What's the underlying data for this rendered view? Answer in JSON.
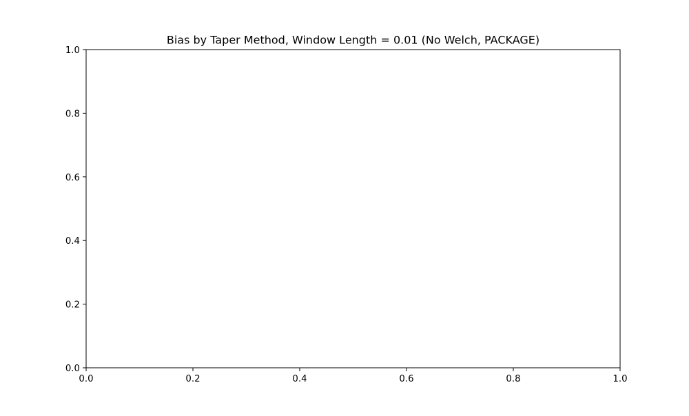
{
  "chart_data": {
    "type": "line",
    "title": "Bias by Taper Method, Window Length = 0.01 (No Welch, PACKAGE)",
    "xlabel": "",
    "ylabel": "",
    "xlim": [
      0.0,
      1.0
    ],
    "ylim": [
      0.0,
      1.0
    ],
    "x_ticks": [
      "0.0",
      "0.2",
      "0.4",
      "0.6",
      "0.8",
      "1.0"
    ],
    "y_ticks": [
      "0.0",
      "0.2",
      "0.4",
      "0.6",
      "0.8",
      "1.0"
    ],
    "grid": false,
    "series": []
  },
  "colors": {
    "background": "#ffffff",
    "axes": "#000000"
  }
}
